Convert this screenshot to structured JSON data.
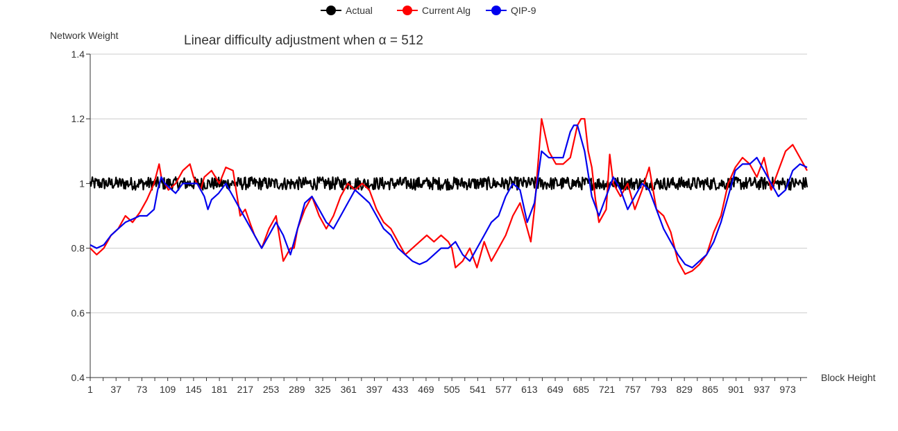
{
  "chart_data": {
    "type": "line",
    "title": "Linear difficulty adjustment when α = 512",
    "xlabel": "Block Height",
    "ylabel": "Network Weight",
    "ylim": [
      0.4,
      1.4
    ],
    "y_ticks": [
      0.4,
      0.6,
      0.8,
      1,
      1.2,
      1.4
    ],
    "y_tick_labels": [
      "0.4",
      "0.6",
      "0.8",
      "1",
      "1.2",
      "1.4"
    ],
    "xlim": [
      1,
      1000
    ],
    "x_tick_labels": [
      "1",
      "37",
      "73",
      "109",
      "145",
      "181",
      "217",
      "253",
      "289",
      "325",
      "361",
      "397",
      "433",
      "469",
      "505",
      "541",
      "577",
      "613",
      "649",
      "685",
      "721",
      "757",
      "793",
      "829",
      "865",
      "901",
      "937",
      "973"
    ],
    "grid": "horizontal",
    "legend": "top",
    "series": [
      {
        "name": "Actual",
        "color": "#000000",
        "kind": "noise",
        "mean": 1.0,
        "amplitude": 0.02
      },
      {
        "name": "Current Alg",
        "color": "#ff0000",
        "x": [
          1,
          10,
          20,
          30,
          40,
          50,
          60,
          70,
          80,
          90,
          97,
          100,
          110,
          120,
          130,
          140,
          145,
          155,
          160,
          170,
          181,
          190,
          200,
          210,
          217,
          225,
          230,
          240,
          250,
          260,
          270,
          280,
          285,
          290,
          300,
          310,
          320,
          330,
          340,
          350,
          360,
          370,
          380,
          390,
          400,
          410,
          420,
          430,
          440,
          450,
          460,
          470,
          480,
          490,
          500,
          505,
          510,
          520,
          530,
          540,
          550,
          560,
          570,
          580,
          590,
          600,
          605,
          610,
          615,
          620,
          630,
          640,
          650,
          660,
          670,
          680,
          685,
          690,
          695,
          700,
          705,
          710,
          720,
          725,
          730,
          740,
          750,
          760,
          770,
          780,
          790,
          800,
          810,
          820,
          830,
          840,
          850,
          860,
          870,
          880,
          890,
          900,
          910,
          920,
          930,
          940,
          950,
          960,
          970,
          980,
          990,
          1000
        ],
        "y": [
          0.8,
          0.78,
          0.8,
          0.84,
          0.86,
          0.9,
          0.88,
          0.91,
          0.95,
          1.0,
          1.06,
          1.02,
          0.98,
          1.0,
          1.04,
          1.06,
          1.02,
          0.98,
          1.02,
          1.04,
          1.0,
          1.05,
          1.04,
          0.9,
          0.92,
          0.87,
          0.84,
          0.8,
          0.86,
          0.9,
          0.76,
          0.8,
          0.8,
          0.86,
          0.92,
          0.96,
          0.9,
          0.86,
          0.9,
          0.96,
          1.0,
          0.98,
          1.0,
          0.98,
          0.92,
          0.88,
          0.86,
          0.82,
          0.78,
          0.8,
          0.82,
          0.84,
          0.82,
          0.84,
          0.82,
          0.8,
          0.74,
          0.76,
          0.8,
          0.74,
          0.82,
          0.76,
          0.8,
          0.84,
          0.9,
          0.94,
          0.9,
          0.86,
          0.82,
          0.92,
          1.2,
          1.1,
          1.06,
          1.06,
          1.08,
          1.18,
          1.2,
          1.2,
          1.1,
          1.05,
          0.95,
          0.88,
          0.92,
          1.09,
          1.0,
          0.96,
          1.0,
          0.92,
          0.98,
          1.05,
          0.92,
          0.9,
          0.85,
          0.76,
          0.72,
          0.73,
          0.75,
          0.78,
          0.85,
          0.9,
          1.0,
          1.05,
          1.08,
          1.06,
          1.02,
          1.08,
          0.98,
          1.04,
          1.1,
          1.12,
          1.08,
          1.04
        ]
      },
      {
        "name": "QIP-9",
        "color": "#0000ee",
        "x": [
          1,
          10,
          20,
          30,
          40,
          50,
          60,
          70,
          80,
          90,
          95,
          100,
          105,
          110,
          120,
          130,
          140,
          150,
          160,
          165,
          170,
          180,
          190,
          200,
          210,
          220,
          230,
          240,
          250,
          260,
          270,
          280,
          285,
          290,
          300,
          310,
          320,
          330,
          340,
          350,
          360,
          370,
          380,
          390,
          400,
          410,
          420,
          430,
          440,
          450,
          460,
          470,
          480,
          490,
          500,
          510,
          520,
          530,
          540,
          550,
          560,
          570,
          580,
          590,
          600,
          610,
          620,
          630,
          640,
          650,
          660,
          670,
          675,
          680,
          690,
          700,
          710,
          720,
          730,
          740,
          750,
          760,
          770,
          780,
          790,
          800,
          810,
          820,
          830,
          840,
          850,
          860,
          870,
          880,
          890,
          900,
          910,
          920,
          930,
          940,
          950,
          960,
          970,
          980,
          990,
          1000
        ],
        "y": [
          0.81,
          0.8,
          0.81,
          0.84,
          0.86,
          0.88,
          0.89,
          0.9,
          0.9,
          0.92,
          0.98,
          1.02,
          1.0,
          0.99,
          0.97,
          1.0,
          1.0,
          1.0,
          0.96,
          0.92,
          0.95,
          0.97,
          1.0,
          0.96,
          0.92,
          0.88,
          0.84,
          0.8,
          0.84,
          0.88,
          0.84,
          0.78,
          0.82,
          0.86,
          0.94,
          0.96,
          0.92,
          0.88,
          0.86,
          0.9,
          0.94,
          0.98,
          0.96,
          0.94,
          0.9,
          0.86,
          0.84,
          0.8,
          0.78,
          0.76,
          0.75,
          0.76,
          0.78,
          0.8,
          0.8,
          0.82,
          0.78,
          0.76,
          0.8,
          0.84,
          0.88,
          0.9,
          0.96,
          1.0,
          0.98,
          0.88,
          0.94,
          1.1,
          1.08,
          1.08,
          1.08,
          1.16,
          1.18,
          1.18,
          1.1,
          0.96,
          0.9,
          0.96,
          1.02,
          0.98,
          0.92,
          0.96,
          1.0,
          0.98,
          0.92,
          0.86,
          0.82,
          0.78,
          0.75,
          0.74,
          0.76,
          0.78,
          0.82,
          0.88,
          0.96,
          1.04,
          1.06,
          1.06,
          1.08,
          1.04,
          1.0,
          0.96,
          0.98,
          1.04,
          1.06,
          1.05
        ]
      }
    ]
  }
}
